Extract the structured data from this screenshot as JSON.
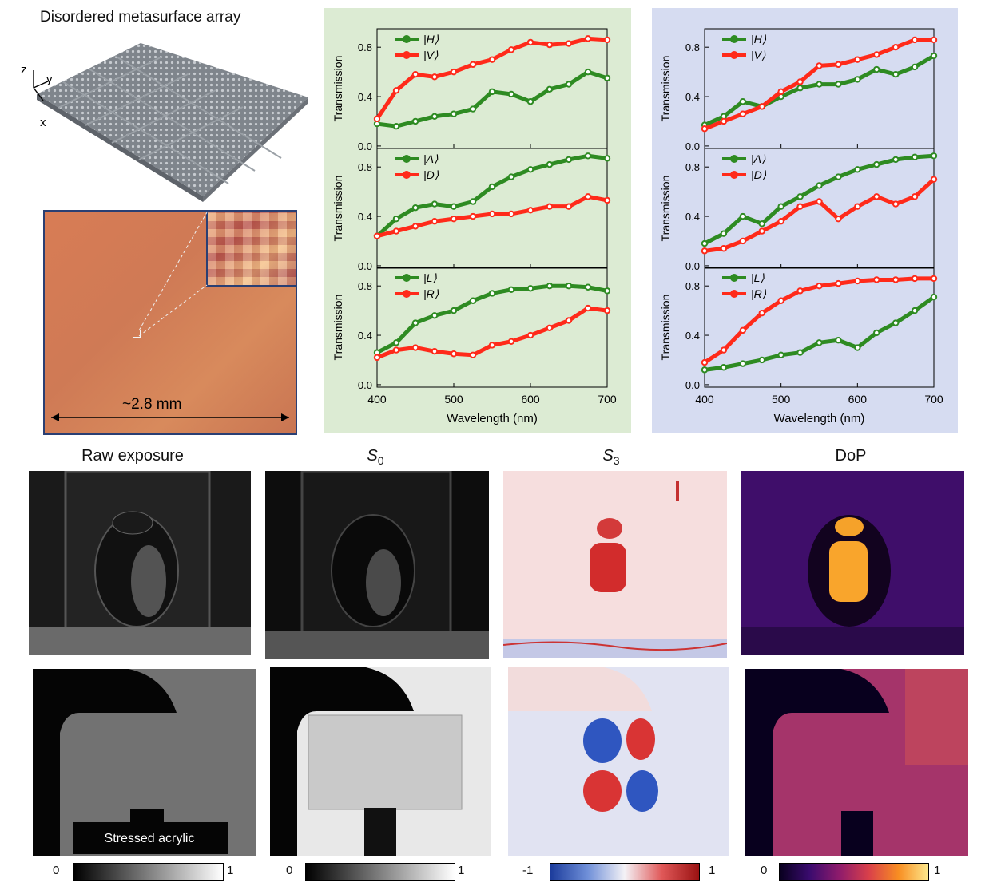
{
  "panel_a": {
    "title": "Disordered metasurface array",
    "axes": {
      "z": "z",
      "y": "y",
      "x": "x"
    },
    "scale_label": "~2.8 mm"
  },
  "charts_common": {
    "xlabel": "Wavelength (nm)",
    "ylabel": "Transmission",
    "x_ticks": [
      "400",
      "500",
      "600",
      "700"
    ],
    "y_ticks": [
      "0.0",
      "0.4",
      "0.8"
    ],
    "xlim": [
      400,
      700
    ],
    "ylim": [
      -0.02,
      0.95
    ],
    "colors": {
      "green": "#2e8b22",
      "red": "#ff2a1a",
      "green_bg": "#dcebd3",
      "blue_bg": "#d6dcf1"
    }
  },
  "chart_data": [
    {
      "type": "line",
      "panel": "left",
      "row": 0,
      "legend": [
        "|H⟩",
        "|V⟩"
      ],
      "x": [
        400,
        425,
        450,
        475,
        500,
        525,
        550,
        575,
        600,
        625,
        650,
        675,
        700
      ],
      "series": [
        {
          "name": "|H⟩",
          "values": [
            0.18,
            0.16,
            0.2,
            0.24,
            0.26,
            0.3,
            0.44,
            0.42,
            0.36,
            0.46,
            0.5,
            0.6,
            0.55
          ]
        },
        {
          "name": "|V⟩",
          "values": [
            0.22,
            0.45,
            0.58,
            0.56,
            0.6,
            0.66,
            0.7,
            0.78,
            0.84,
            0.82,
            0.83,
            0.87,
            0.86
          ]
        }
      ]
    },
    {
      "type": "line",
      "panel": "left",
      "row": 1,
      "legend": [
        "|A⟩",
        "|D⟩"
      ],
      "x": [
        400,
        425,
        450,
        475,
        500,
        525,
        550,
        575,
        600,
        625,
        650,
        675,
        700
      ],
      "series": [
        {
          "name": "|A⟩",
          "values": [
            0.24,
            0.38,
            0.47,
            0.5,
            0.48,
            0.52,
            0.64,
            0.72,
            0.78,
            0.82,
            0.86,
            0.89,
            0.87
          ]
        },
        {
          "name": "|D⟩",
          "values": [
            0.24,
            0.28,
            0.32,
            0.36,
            0.38,
            0.4,
            0.42,
            0.42,
            0.45,
            0.48,
            0.48,
            0.56,
            0.53
          ]
        }
      ]
    },
    {
      "type": "line",
      "panel": "left",
      "row": 2,
      "legend": [
        "|L⟩",
        "|R⟩"
      ],
      "x": [
        400,
        425,
        450,
        475,
        500,
        525,
        550,
        575,
        600,
        625,
        650,
        675,
        700
      ],
      "series": [
        {
          "name": "|L⟩",
          "values": [
            0.26,
            0.34,
            0.5,
            0.56,
            0.6,
            0.68,
            0.74,
            0.77,
            0.78,
            0.8,
            0.8,
            0.79,
            0.76
          ]
        },
        {
          "name": "|R⟩",
          "values": [
            0.22,
            0.28,
            0.3,
            0.27,
            0.25,
            0.24,
            0.32,
            0.35,
            0.4,
            0.46,
            0.52,
            0.62,
            0.6
          ]
        }
      ]
    },
    {
      "type": "line",
      "panel": "right",
      "row": 0,
      "legend": [
        "|H⟩",
        "|V⟩"
      ],
      "x": [
        400,
        425,
        450,
        475,
        500,
        525,
        550,
        575,
        600,
        625,
        650,
        675,
        700
      ],
      "series": [
        {
          "name": "|H⟩",
          "values": [
            0.17,
            0.24,
            0.36,
            0.32,
            0.4,
            0.47,
            0.5,
            0.5,
            0.54,
            0.62,
            0.58,
            0.64,
            0.73
          ]
        },
        {
          "name": "|V⟩",
          "values": [
            0.14,
            0.2,
            0.26,
            0.32,
            0.44,
            0.52,
            0.65,
            0.66,
            0.7,
            0.74,
            0.8,
            0.86,
            0.86
          ]
        }
      ]
    },
    {
      "type": "line",
      "panel": "right",
      "row": 1,
      "legend": [
        "|A⟩",
        "|D⟩"
      ],
      "x": [
        400,
        425,
        450,
        475,
        500,
        525,
        550,
        575,
        600,
        625,
        650,
        675,
        700
      ],
      "series": [
        {
          "name": "|A⟩",
          "values": [
            0.18,
            0.26,
            0.4,
            0.34,
            0.48,
            0.56,
            0.65,
            0.72,
            0.78,
            0.82,
            0.86,
            0.88,
            0.89
          ]
        },
        {
          "name": "|D⟩",
          "values": [
            0.12,
            0.14,
            0.2,
            0.28,
            0.36,
            0.48,
            0.52,
            0.38,
            0.48,
            0.56,
            0.5,
            0.56,
            0.7
          ]
        }
      ]
    },
    {
      "type": "line",
      "panel": "right",
      "row": 2,
      "legend": [
        "|L⟩",
        "|R⟩"
      ],
      "x": [
        400,
        425,
        450,
        475,
        500,
        525,
        550,
        575,
        600,
        625,
        650,
        675,
        700
      ],
      "series": [
        {
          "name": "|L⟩",
          "values": [
            0.12,
            0.14,
            0.17,
            0.2,
            0.24,
            0.26,
            0.34,
            0.36,
            0.3,
            0.42,
            0.5,
            0.6,
            0.71
          ]
        },
        {
          "name": "|R⟩",
          "values": [
            0.18,
            0.28,
            0.44,
            0.58,
            0.68,
            0.76,
            0.8,
            0.82,
            0.84,
            0.85,
            0.85,
            0.86,
            0.86
          ]
        }
      ]
    }
  ],
  "image_grid": {
    "column_titles": [
      "Raw exposure",
      "S",
      "S",
      "DoP"
    ],
    "column_subscripts": [
      "",
      "0",
      "3",
      ""
    ],
    "overlay_label": "Stressed  acrylic",
    "colorbars": [
      {
        "min": "0",
        "max": "1",
        "gradient": "linear-gradient(to right,#000,#fff)"
      },
      {
        "min": "0",
        "max": "1",
        "gradient": "linear-gradient(to right,#000,#fff)"
      },
      {
        "min": "-1",
        "max": "1",
        "gradient": "linear-gradient(to right,#1c3c9c,#6f8fd8,#f4f2f6,#e05858,#9a1212)"
      },
      {
        "min": "0",
        "max": "1",
        "gradient": "linear-gradient(to right,#08001e,#3a0b6e,#8e1b6c,#d9404a,#f88e22,#fde88c)"
      }
    ]
  }
}
